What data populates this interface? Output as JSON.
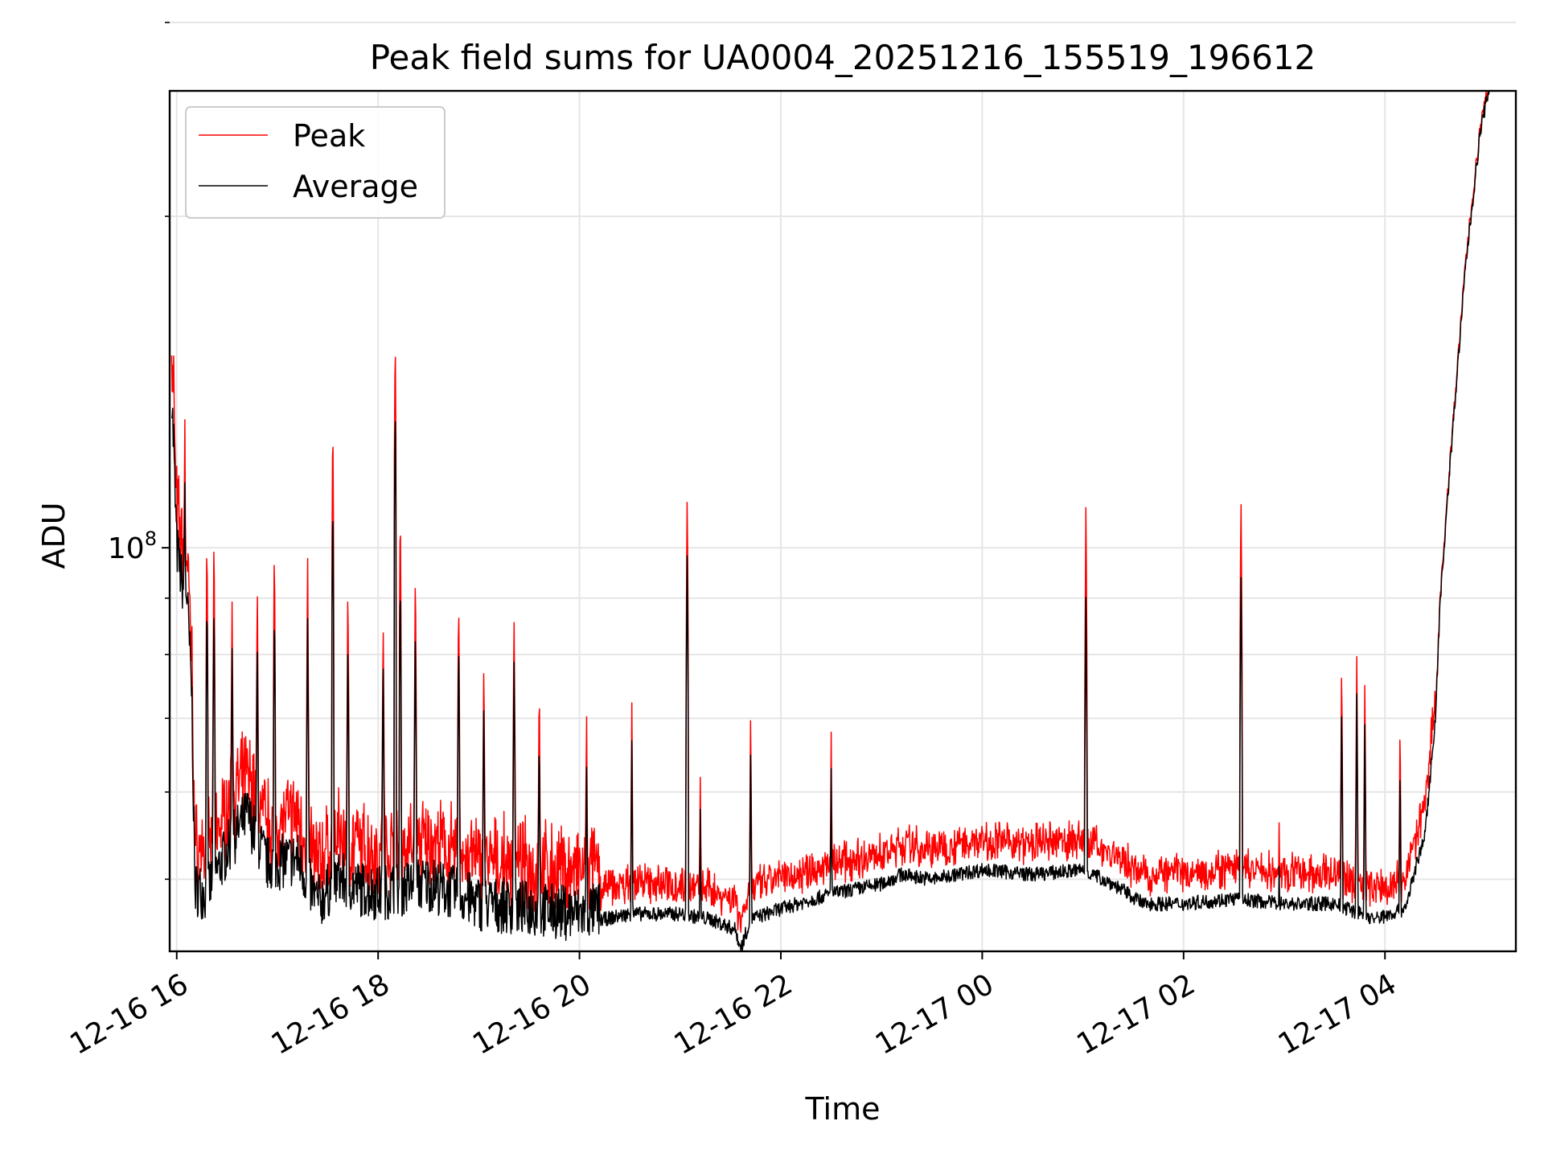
{
  "chart_data": {
    "type": "line",
    "title": "Peak field sums for UA0004_20251216_155519_196612",
    "xlabel": "Time",
    "ylabel": "ADU",
    "y_scale": "log",
    "ylim": [
      43000000,
      260000000
    ],
    "y_major_ticks": [
      {
        "value": 100000000,
        "base": "10",
        "exp": "8"
      }
    ],
    "y_minor_ticks": [
      50000000,
      60000000,
      70000000,
      80000000,
      90000000,
      200000000,
      300000000
    ],
    "x_unit": "hours since 12-16 16:00",
    "xlim": [
      -0.07,
      13.3
    ],
    "x_ticks": [
      {
        "value": 0,
        "label": "12-16 16"
      },
      {
        "value": 2,
        "label": "12-16 18"
      },
      {
        "value": 4,
        "label": "12-16 20"
      },
      {
        "value": 6,
        "label": "12-16 22"
      },
      {
        "value": 8,
        "label": "12-17 00"
      },
      {
        "value": 10,
        "label": "12-17 02"
      },
      {
        "value": 12,
        "label": "12-17 04"
      }
    ],
    "grid": true,
    "legend_position": "top-left",
    "series": [
      {
        "name": "Peak",
        "color": "#ff0000"
      },
      {
        "name": "Average",
        "color": "#000000"
      }
    ],
    "average_points": [
      [
        -0.05,
        136000000
      ],
      [
        0.0,
        98000000
      ],
      [
        0.05,
        91000000
      ],
      [
        0.1,
        89000000
      ],
      [
        0.15,
        72000000
      ],
      [
        0.18,
        48000000
      ],
      [
        0.3,
        47500000
      ],
      [
        0.5,
        52000000
      ],
      [
        0.7,
        56000000
      ],
      [
        0.9,
        50500000
      ],
      [
        1.2,
        51000000
      ],
      [
        1.4,
        46500000
      ],
      [
        1.6,
        49000000
      ],
      [
        1.8,
        48000000
      ],
      [
        2.0,
        47500000
      ],
      [
        2.5,
        48500000
      ],
      [
        3.0,
        46500000
      ],
      [
        3.5,
        46000000
      ],
      [
        4.0,
        45500000
      ],
      [
        4.5,
        46500000
      ],
      [
        5.0,
        46500000
      ],
      [
        5.3,
        46000000
      ],
      [
        5.55,
        45000000
      ],
      [
        5.6,
        43200000
      ],
      [
        5.7,
        46000000
      ],
      [
        6.0,
        47000000
      ],
      [
        6.5,
        48500000
      ],
      [
        7.0,
        49500000
      ],
      [
        7.2,
        50500000
      ],
      [
        7.5,
        50000000
      ],
      [
        8.0,
        51000000
      ],
      [
        8.5,
        50500000
      ],
      [
        9.0,
        51000000
      ],
      [
        9.3,
        49500000
      ],
      [
        9.6,
        47500000
      ],
      [
        10.0,
        47500000
      ],
      [
        10.5,
        48000000
      ],
      [
        11.0,
        47500000
      ],
      [
        11.5,
        47500000
      ],
      [
        11.9,
        46000000
      ],
      [
        12.2,
        47000000
      ],
      [
        12.3,
        51000000
      ],
      [
        12.4,
        55000000
      ],
      [
        12.5,
        70000000
      ],
      [
        12.55,
        90000000
      ],
      [
        12.65,
        120000000
      ],
      [
        12.8,
        180000000
      ],
      [
        12.95,
        240000000
      ],
      [
        13.05,
        265000000
      ]
    ],
    "spikes": [
      {
        "x": -0.03,
        "peak": 150000000,
        "avg": 130000000
      },
      {
        "x": 0.08,
        "peak": 129000000,
        "avg": 118000000
      },
      {
        "x": 0.3,
        "peak": 101000000,
        "avg": 92000000
      },
      {
        "x": 0.37,
        "peak": 100000000,
        "avg": 91000000
      },
      {
        "x": 0.55,
        "peak": 89000000,
        "avg": 82000000
      },
      {
        "x": 0.8,
        "peak": 91000000,
        "avg": 84000000
      },
      {
        "x": 0.97,
        "peak": 98000000,
        "avg": 90000000
      },
      {
        "x": 1.3,
        "peak": 95000000,
        "avg": 87000000
      },
      {
        "x": 1.55,
        "peak": 132000000,
        "avg": 113000000
      },
      {
        "x": 1.7,
        "peak": 91000000,
        "avg": 84000000
      },
      {
        "x": 2.05,
        "peak": 86000000,
        "avg": 80000000
      },
      {
        "x": 2.17,
        "peak": 158000000,
        "avg": 138000000
      },
      {
        "x": 2.22,
        "peak": 110000000,
        "avg": 96000000
      },
      {
        "x": 2.37,
        "peak": 95000000,
        "avg": 86000000
      },
      {
        "x": 2.8,
        "peak": 91000000,
        "avg": 84000000
      },
      {
        "x": 3.05,
        "peak": 80000000,
        "avg": 74000000
      },
      {
        "x": 3.35,
        "peak": 88000000,
        "avg": 81000000
      },
      {
        "x": 3.6,
        "peak": 75000000,
        "avg": 69000000
      },
      {
        "x": 4.07,
        "peak": 71000000,
        "avg": 66000000
      },
      {
        "x": 4.52,
        "peak": 72000000,
        "avg": 67000000
      },
      {
        "x": 5.07,
        "peak": 113000000,
        "avg": 101000000
      },
      {
        "x": 5.2,
        "peak": 62000000,
        "avg": 58000000
      },
      {
        "x": 5.7,
        "peak": 72000000,
        "avg": 67000000
      },
      {
        "x": 6.5,
        "peak": 68000000,
        "avg": 63000000
      },
      {
        "x": 9.03,
        "peak": 111000000,
        "avg": 92000000
      },
      {
        "x": 10.57,
        "peak": 113000000,
        "avg": 97000000
      },
      {
        "x": 10.95,
        "peak": 57000000,
        "avg": 53000000
      },
      {
        "x": 11.57,
        "peak": 79000000,
        "avg": 73000000
      },
      {
        "x": 11.72,
        "peak": 80000000,
        "avg": 74000000
      },
      {
        "x": 11.8,
        "peak": 76000000,
        "avg": 70000000
      },
      {
        "x": 12.15,
        "peak": 70000000,
        "avg": 65000000
      }
    ]
  }
}
